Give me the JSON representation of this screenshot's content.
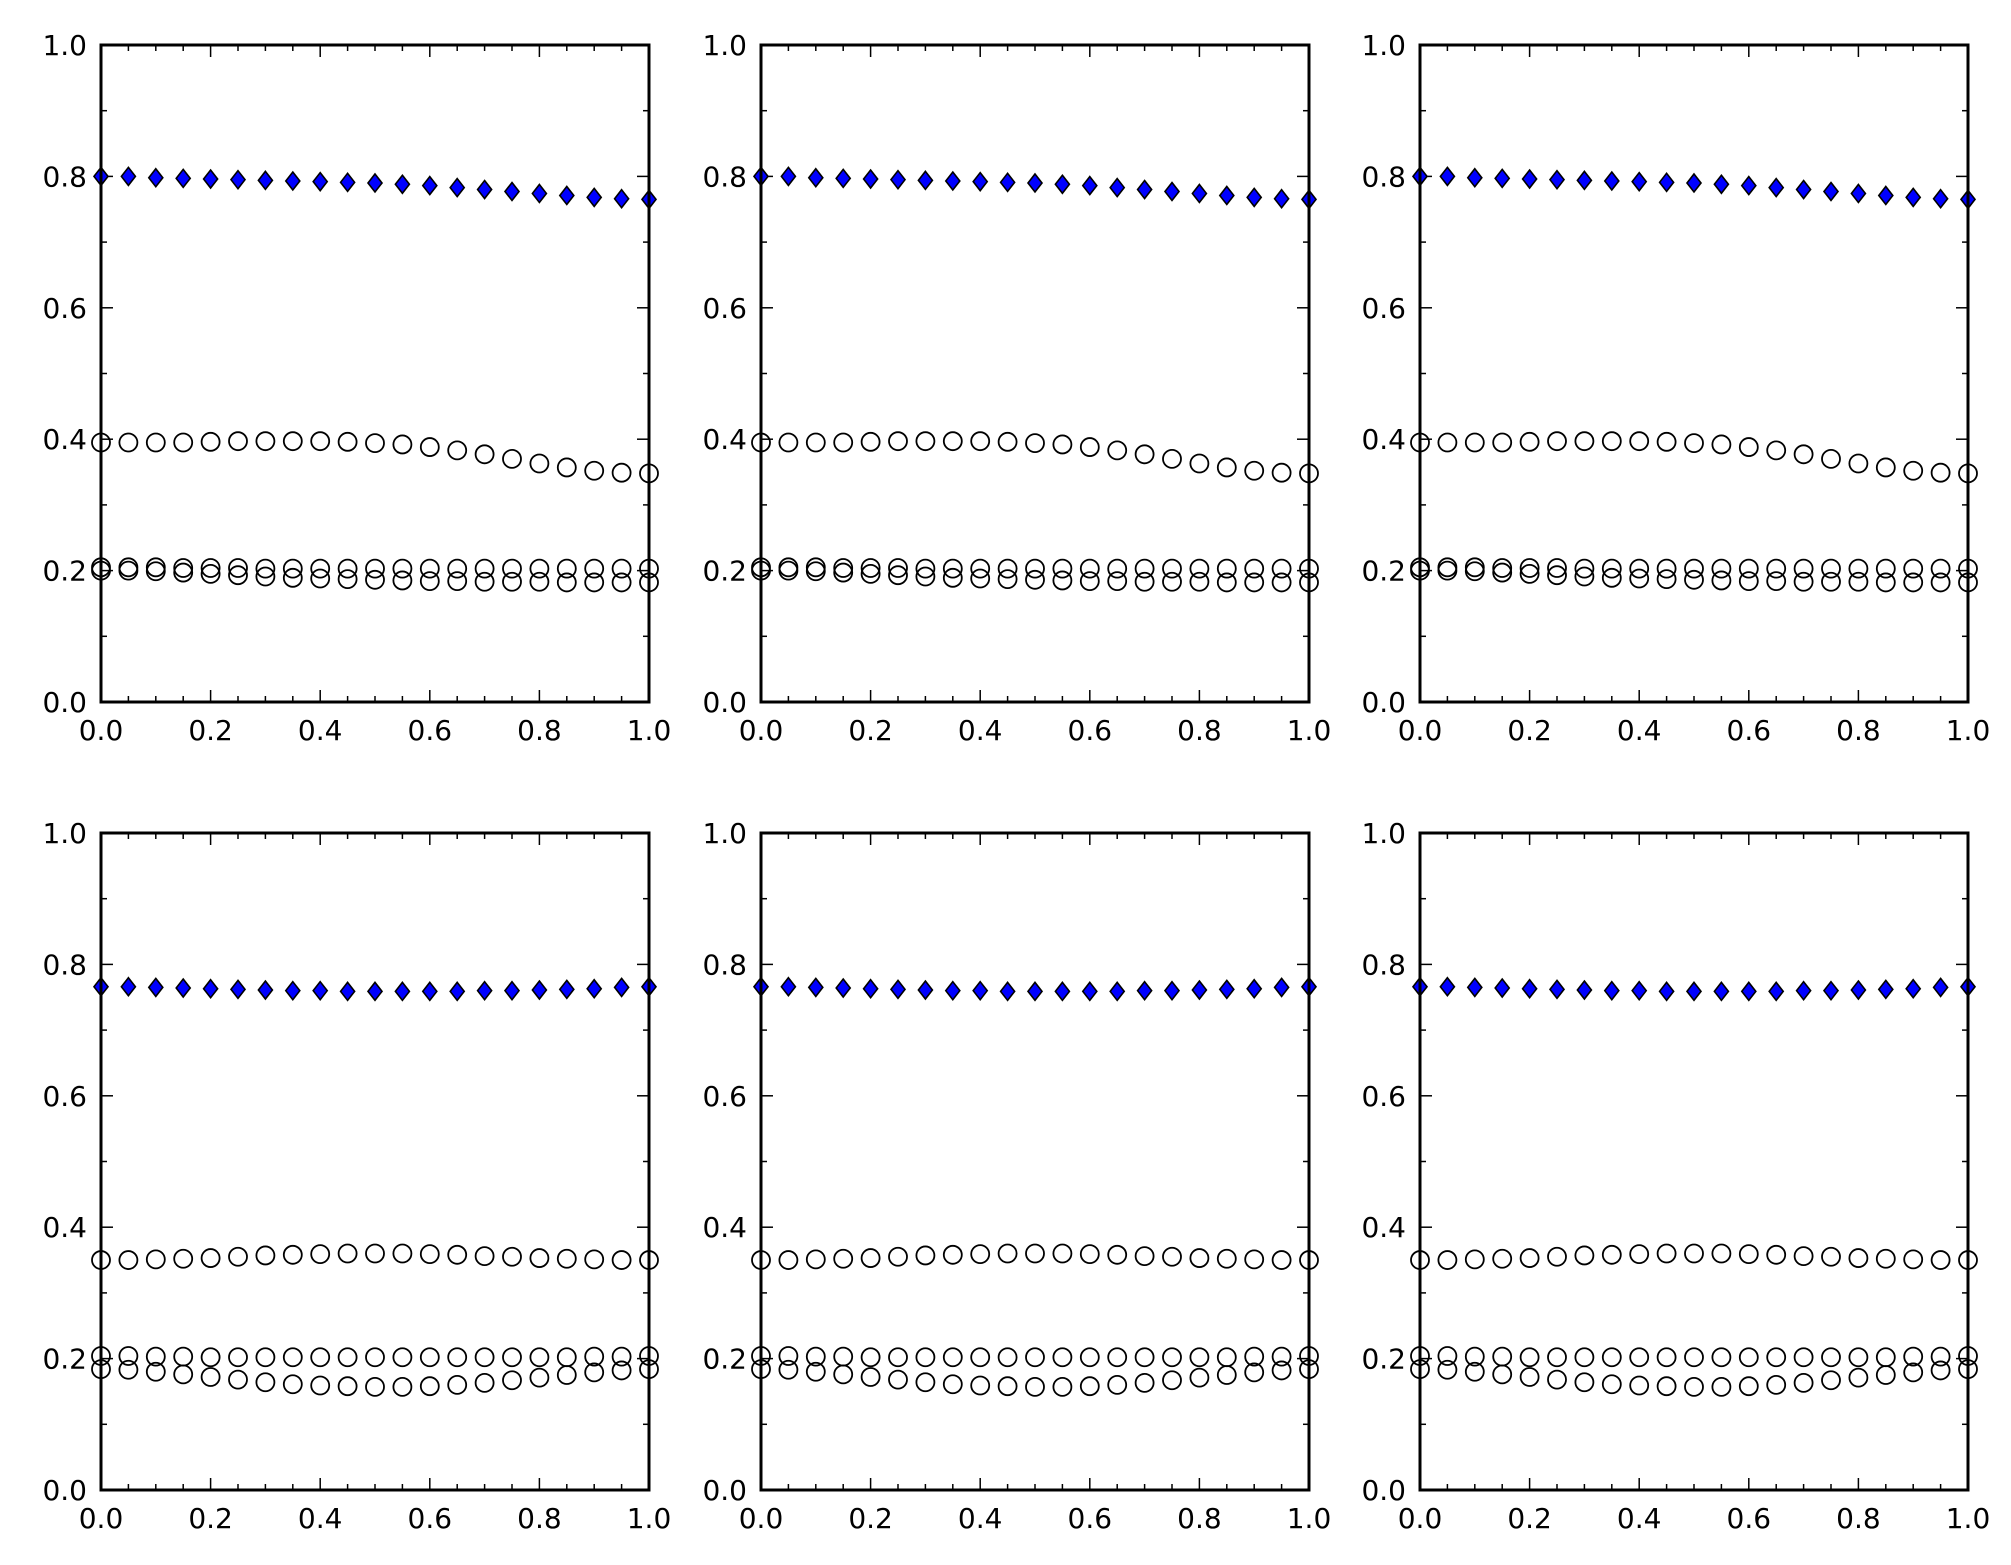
{
  "chart_data": [
    {
      "type": "scatter",
      "xlim": [
        0,
        1
      ],
      "ylim": [
        0,
        1
      ],
      "x_ticks": [
        "0.0",
        "0.2",
        "0.4",
        "0.6",
        "0.8",
        "1.0"
      ],
      "y_ticks": [
        "0.0",
        "0.2",
        "0.4",
        "0.6",
        "0.8",
        "1.0"
      ],
      "grid": false,
      "x": [
        0,
        0.05,
        0.1,
        0.15,
        0.2,
        0.25,
        0.3,
        0.35,
        0.4,
        0.45,
        0.5,
        0.55,
        0.6,
        0.65,
        0.7,
        0.75,
        0.8,
        0.85,
        0.9,
        0.95,
        1.0
      ],
      "series": [
        {
          "marker": "diamond",
          "color": "#0000ff",
          "values": [
            0.8,
            0.8,
            0.798,
            0.797,
            0.796,
            0.795,
            0.794,
            0.793,
            0.792,
            0.791,
            0.79,
            0.788,
            0.786,
            0.783,
            0.78,
            0.777,
            0.774,
            0.771,
            0.768,
            0.766,
            0.765
          ]
        },
        {
          "marker": "circle",
          "color": "#000000",
          "values": [
            0.395,
            0.395,
            0.395,
            0.395,
            0.396,
            0.397,
            0.397,
            0.397,
            0.397,
            0.396,
            0.394,
            0.392,
            0.388,
            0.383,
            0.377,
            0.37,
            0.363,
            0.357,
            0.352,
            0.349,
            0.348
          ]
        },
        {
          "marker": "circle",
          "color": "#000000",
          "values": [
            0.205,
            0.205,
            0.205,
            0.204,
            0.204,
            0.204,
            0.203,
            0.203,
            0.203,
            0.203,
            0.203,
            0.203,
            0.203,
            0.203,
            0.203,
            0.203,
            0.203,
            0.203,
            0.203,
            0.203,
            0.203
          ]
        },
        {
          "marker": "circle",
          "color": "#000000",
          "values": [
            0.2,
            0.2,
            0.199,
            0.197,
            0.195,
            0.193,
            0.191,
            0.189,
            0.188,
            0.187,
            0.186,
            0.185,
            0.184,
            0.184,
            0.183,
            0.183,
            0.183,
            0.182,
            0.182,
            0.182,
            0.182
          ]
        }
      ]
    },
    {
      "type": "scatter",
      "xlim": [
        0,
        1
      ],
      "ylim": [
        0,
        1
      ],
      "x_ticks": [
        "0.0",
        "0.2",
        "0.4",
        "0.6",
        "0.8",
        "1.0"
      ],
      "y_ticks": [
        "0.0",
        "0.2",
        "0.4",
        "0.6",
        "0.8",
        "1.0"
      ],
      "grid": false,
      "x": [
        0,
        0.05,
        0.1,
        0.15,
        0.2,
        0.25,
        0.3,
        0.35,
        0.4,
        0.45,
        0.5,
        0.55,
        0.6,
        0.65,
        0.7,
        0.75,
        0.8,
        0.85,
        0.9,
        0.95,
        1.0
      ],
      "series": [
        {
          "marker": "diamond",
          "color": "#0000ff",
          "values": [
            0.8,
            0.8,
            0.798,
            0.797,
            0.796,
            0.795,
            0.794,
            0.793,
            0.792,
            0.791,
            0.79,
            0.788,
            0.786,
            0.783,
            0.78,
            0.777,
            0.774,
            0.771,
            0.768,
            0.766,
            0.765
          ]
        },
        {
          "marker": "circle",
          "color": "#000000",
          "values": [
            0.395,
            0.395,
            0.395,
            0.395,
            0.396,
            0.397,
            0.397,
            0.397,
            0.397,
            0.396,
            0.394,
            0.392,
            0.388,
            0.383,
            0.377,
            0.37,
            0.363,
            0.357,
            0.352,
            0.349,
            0.348
          ]
        },
        {
          "marker": "circle",
          "color": "#000000",
          "values": [
            0.205,
            0.205,
            0.205,
            0.204,
            0.204,
            0.204,
            0.203,
            0.203,
            0.203,
            0.203,
            0.203,
            0.203,
            0.203,
            0.203,
            0.203,
            0.203,
            0.203,
            0.203,
            0.203,
            0.203,
            0.203
          ]
        },
        {
          "marker": "circle",
          "color": "#000000",
          "values": [
            0.2,
            0.2,
            0.199,
            0.197,
            0.195,
            0.193,
            0.191,
            0.189,
            0.188,
            0.187,
            0.186,
            0.185,
            0.184,
            0.184,
            0.183,
            0.183,
            0.183,
            0.182,
            0.182,
            0.182,
            0.182
          ]
        }
      ]
    },
    {
      "type": "scatter",
      "xlim": [
        0,
        1
      ],
      "ylim": [
        0,
        1
      ],
      "x_ticks": [
        "0.0",
        "0.2",
        "0.4",
        "0.6",
        "0.8",
        "1.0"
      ],
      "y_ticks": [
        "0.0",
        "0.2",
        "0.4",
        "0.6",
        "0.8",
        "1.0"
      ],
      "grid": false,
      "x": [
        0,
        0.05,
        0.1,
        0.15,
        0.2,
        0.25,
        0.3,
        0.35,
        0.4,
        0.45,
        0.5,
        0.55,
        0.6,
        0.65,
        0.7,
        0.75,
        0.8,
        0.85,
        0.9,
        0.95,
        1.0
      ],
      "series": [
        {
          "marker": "diamond",
          "color": "#0000ff",
          "values": [
            0.8,
            0.8,
            0.798,
            0.797,
            0.796,
            0.795,
            0.794,
            0.793,
            0.792,
            0.791,
            0.79,
            0.788,
            0.786,
            0.783,
            0.78,
            0.777,
            0.774,
            0.771,
            0.768,
            0.766,
            0.765
          ]
        },
        {
          "marker": "circle",
          "color": "#000000",
          "values": [
            0.395,
            0.395,
            0.395,
            0.395,
            0.396,
            0.397,
            0.397,
            0.397,
            0.397,
            0.396,
            0.394,
            0.392,
            0.388,
            0.383,
            0.377,
            0.37,
            0.363,
            0.357,
            0.352,
            0.349,
            0.348
          ]
        },
        {
          "marker": "circle",
          "color": "#000000",
          "values": [
            0.205,
            0.205,
            0.205,
            0.204,
            0.204,
            0.204,
            0.203,
            0.203,
            0.203,
            0.203,
            0.203,
            0.203,
            0.203,
            0.203,
            0.203,
            0.203,
            0.203,
            0.203,
            0.203,
            0.203,
            0.203
          ]
        },
        {
          "marker": "circle",
          "color": "#000000",
          "values": [
            0.2,
            0.2,
            0.199,
            0.197,
            0.195,
            0.193,
            0.191,
            0.189,
            0.188,
            0.187,
            0.186,
            0.185,
            0.184,
            0.184,
            0.183,
            0.183,
            0.183,
            0.182,
            0.182,
            0.182,
            0.182
          ]
        }
      ]
    },
    {
      "type": "scatter",
      "xlim": [
        0,
        1
      ],
      "ylim": [
        0,
        1
      ],
      "x_ticks": [
        "0.0",
        "0.2",
        "0.4",
        "0.6",
        "0.8",
        "1.0"
      ],
      "y_ticks": [
        "0.0",
        "0.2",
        "0.4",
        "0.6",
        "0.8",
        "1.0"
      ],
      "grid": false,
      "x": [
        0,
        0.05,
        0.1,
        0.15,
        0.2,
        0.25,
        0.3,
        0.35,
        0.4,
        0.45,
        0.5,
        0.55,
        0.6,
        0.65,
        0.7,
        0.75,
        0.8,
        0.85,
        0.9,
        0.95,
        1.0
      ],
      "series": [
        {
          "marker": "diamond",
          "color": "#0000ff",
          "values": [
            0.766,
            0.766,
            0.765,
            0.764,
            0.763,
            0.762,
            0.761,
            0.76,
            0.76,
            0.759,
            0.759,
            0.759,
            0.759,
            0.759,
            0.76,
            0.76,
            0.761,
            0.762,
            0.763,
            0.765,
            0.766
          ]
        },
        {
          "marker": "circle",
          "color": "#000000",
          "values": [
            0.35,
            0.35,
            0.351,
            0.352,
            0.353,
            0.355,
            0.357,
            0.358,
            0.359,
            0.36,
            0.36,
            0.36,
            0.359,
            0.358,
            0.356,
            0.355,
            0.353,
            0.352,
            0.351,
            0.35,
            0.35
          ]
        },
        {
          "marker": "circle",
          "color": "#000000",
          "values": [
            0.204,
            0.204,
            0.203,
            0.203,
            0.202,
            0.202,
            0.202,
            0.202,
            0.202,
            0.202,
            0.202,
            0.202,
            0.202,
            0.202,
            0.202,
            0.202,
            0.202,
            0.202,
            0.203,
            0.203,
            0.204
          ]
        },
        {
          "marker": "circle",
          "color": "#000000",
          "values": [
            0.184,
            0.183,
            0.18,
            0.176,
            0.172,
            0.168,
            0.164,
            0.161,
            0.159,
            0.158,
            0.157,
            0.157,
            0.158,
            0.16,
            0.163,
            0.167,
            0.171,
            0.175,
            0.179,
            0.182,
            0.184
          ]
        }
      ]
    },
    {
      "type": "scatter",
      "xlim": [
        0,
        1
      ],
      "ylim": [
        0,
        1
      ],
      "x_ticks": [
        "0.0",
        "0.2",
        "0.4",
        "0.6",
        "0.8",
        "1.0"
      ],
      "y_ticks": [
        "0.0",
        "0.2",
        "0.4",
        "0.6",
        "0.8",
        "1.0"
      ],
      "grid": false,
      "x": [
        0,
        0.05,
        0.1,
        0.15,
        0.2,
        0.25,
        0.3,
        0.35,
        0.4,
        0.45,
        0.5,
        0.55,
        0.6,
        0.65,
        0.7,
        0.75,
        0.8,
        0.85,
        0.9,
        0.95,
        1.0
      ],
      "series": [
        {
          "marker": "diamond",
          "color": "#0000ff",
          "values": [
            0.766,
            0.766,
            0.765,
            0.764,
            0.763,
            0.762,
            0.761,
            0.76,
            0.76,
            0.759,
            0.759,
            0.759,
            0.759,
            0.759,
            0.76,
            0.76,
            0.761,
            0.762,
            0.763,
            0.765,
            0.766
          ]
        },
        {
          "marker": "circle",
          "color": "#000000",
          "values": [
            0.35,
            0.35,
            0.351,
            0.352,
            0.353,
            0.355,
            0.357,
            0.358,
            0.359,
            0.36,
            0.36,
            0.36,
            0.359,
            0.358,
            0.356,
            0.355,
            0.353,
            0.352,
            0.351,
            0.35,
            0.35
          ]
        },
        {
          "marker": "circle",
          "color": "#000000",
          "values": [
            0.204,
            0.204,
            0.203,
            0.203,
            0.202,
            0.202,
            0.202,
            0.202,
            0.202,
            0.202,
            0.202,
            0.202,
            0.202,
            0.202,
            0.202,
            0.202,
            0.202,
            0.202,
            0.203,
            0.203,
            0.204
          ]
        },
        {
          "marker": "circle",
          "color": "#000000",
          "values": [
            0.184,
            0.183,
            0.18,
            0.176,
            0.172,
            0.168,
            0.164,
            0.161,
            0.159,
            0.158,
            0.157,
            0.157,
            0.158,
            0.16,
            0.163,
            0.167,
            0.171,
            0.175,
            0.179,
            0.182,
            0.184
          ]
        }
      ]
    },
    {
      "type": "scatter",
      "xlim": [
        0,
        1
      ],
      "ylim": [
        0,
        1
      ],
      "x_ticks": [
        "0.0",
        "0.2",
        "0.4",
        "0.6",
        "0.8",
        "1.0"
      ],
      "y_ticks": [
        "0.0",
        "0.2",
        "0.4",
        "0.6",
        "0.8",
        "1.0"
      ],
      "grid": false,
      "x": [
        0,
        0.05,
        0.1,
        0.15,
        0.2,
        0.25,
        0.3,
        0.35,
        0.4,
        0.45,
        0.5,
        0.55,
        0.6,
        0.65,
        0.7,
        0.75,
        0.8,
        0.85,
        0.9,
        0.95,
        1.0
      ],
      "series": [
        {
          "marker": "diamond",
          "color": "#0000ff",
          "values": [
            0.766,
            0.766,
            0.765,
            0.764,
            0.763,
            0.762,
            0.761,
            0.76,
            0.76,
            0.759,
            0.759,
            0.759,
            0.759,
            0.759,
            0.76,
            0.76,
            0.761,
            0.762,
            0.763,
            0.765,
            0.766
          ]
        },
        {
          "marker": "circle",
          "color": "#000000",
          "values": [
            0.35,
            0.35,
            0.351,
            0.352,
            0.353,
            0.355,
            0.357,
            0.358,
            0.359,
            0.36,
            0.36,
            0.36,
            0.359,
            0.358,
            0.356,
            0.355,
            0.353,
            0.352,
            0.351,
            0.35,
            0.35
          ]
        },
        {
          "marker": "circle",
          "color": "#000000",
          "values": [
            0.204,
            0.204,
            0.203,
            0.203,
            0.202,
            0.202,
            0.202,
            0.202,
            0.202,
            0.202,
            0.202,
            0.202,
            0.202,
            0.202,
            0.202,
            0.202,
            0.202,
            0.202,
            0.203,
            0.203,
            0.204
          ]
        },
        {
          "marker": "circle",
          "color": "#000000",
          "values": [
            0.184,
            0.183,
            0.18,
            0.176,
            0.172,
            0.168,
            0.164,
            0.161,
            0.159,
            0.158,
            0.157,
            0.157,
            0.158,
            0.16,
            0.163,
            0.167,
            0.171,
            0.175,
            0.179,
            0.182,
            0.184
          ]
        }
      ]
    }
  ]
}
